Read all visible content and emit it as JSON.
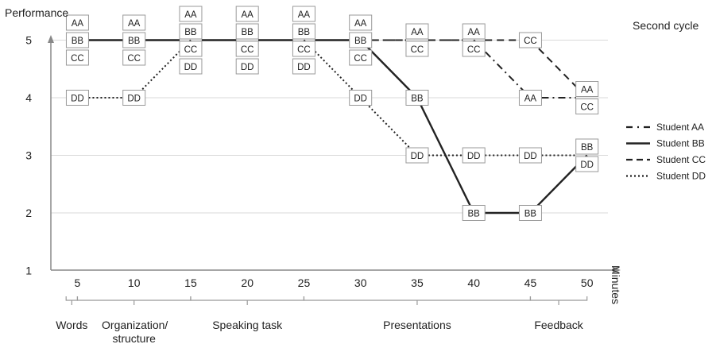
{
  "chart_data": {
    "type": "line",
    "title": "Second cycle",
    "ylabel": "Performance",
    "xlabel": "Minutes",
    "xlim": [
      0,
      55
    ],
    "ylim": [
      1,
      5
    ],
    "x_ticks": [
      5,
      10,
      15,
      20,
      25,
      30,
      35,
      40,
      45,
      50
    ],
    "y_ticks": [
      1,
      2,
      3,
      4,
      5
    ],
    "grid": "horizontal",
    "legend_position": "right",
    "series": [
      {
        "name": "Student AA",
        "label": "AA",
        "style": "dashdot",
        "points": [
          [
            5,
            5
          ],
          [
            10,
            5
          ],
          [
            15,
            5
          ],
          [
            20,
            5
          ],
          [
            25,
            5
          ],
          [
            30,
            5
          ],
          [
            35,
            5
          ],
          [
            40,
            5
          ],
          [
            45,
            4
          ],
          [
            50,
            4
          ]
        ]
      },
      {
        "name": "Student BB",
        "label": "BB",
        "style": "solid",
        "points": [
          [
            5,
            5
          ],
          [
            10,
            5
          ],
          [
            15,
            5
          ],
          [
            20,
            5
          ],
          [
            25,
            5
          ],
          [
            30,
            5
          ],
          [
            35,
            4
          ],
          [
            40,
            2
          ],
          [
            45,
            2
          ],
          [
            50,
            3
          ]
        ]
      },
      {
        "name": "Student CC",
        "label": "CC",
        "style": "dashed",
        "points": [
          [
            5,
            5
          ],
          [
            10,
            5
          ],
          [
            15,
            5
          ],
          [
            20,
            5
          ],
          [
            25,
            5
          ],
          [
            30,
            5
          ],
          [
            35,
            5
          ],
          [
            40,
            5
          ],
          [
            45,
            5
          ],
          [
            50,
            4
          ]
        ]
      },
      {
        "name": "Student DD",
        "label": "DD",
        "style": "dotted",
        "points": [
          [
            5,
            4
          ],
          [
            10,
            4
          ],
          [
            15,
            5
          ],
          [
            20,
            5
          ],
          [
            25,
            5
          ],
          [
            30,
            4
          ],
          [
            35,
            3
          ],
          [
            40,
            3
          ],
          [
            45,
            3
          ],
          [
            50,
            3
          ]
        ]
      }
    ],
    "phases": [
      {
        "label": "Words",
        "from": 4,
        "to": 5
      },
      {
        "label": "Organization/ structure",
        "from": 5,
        "to": 15
      },
      {
        "label": "Speaking task",
        "from": 15,
        "to": 25
      },
      {
        "label": "Presentations",
        "from": 25,
        "to": 45
      },
      {
        "label": "Feedback",
        "from": 45,
        "to": 50
      }
    ]
  }
}
